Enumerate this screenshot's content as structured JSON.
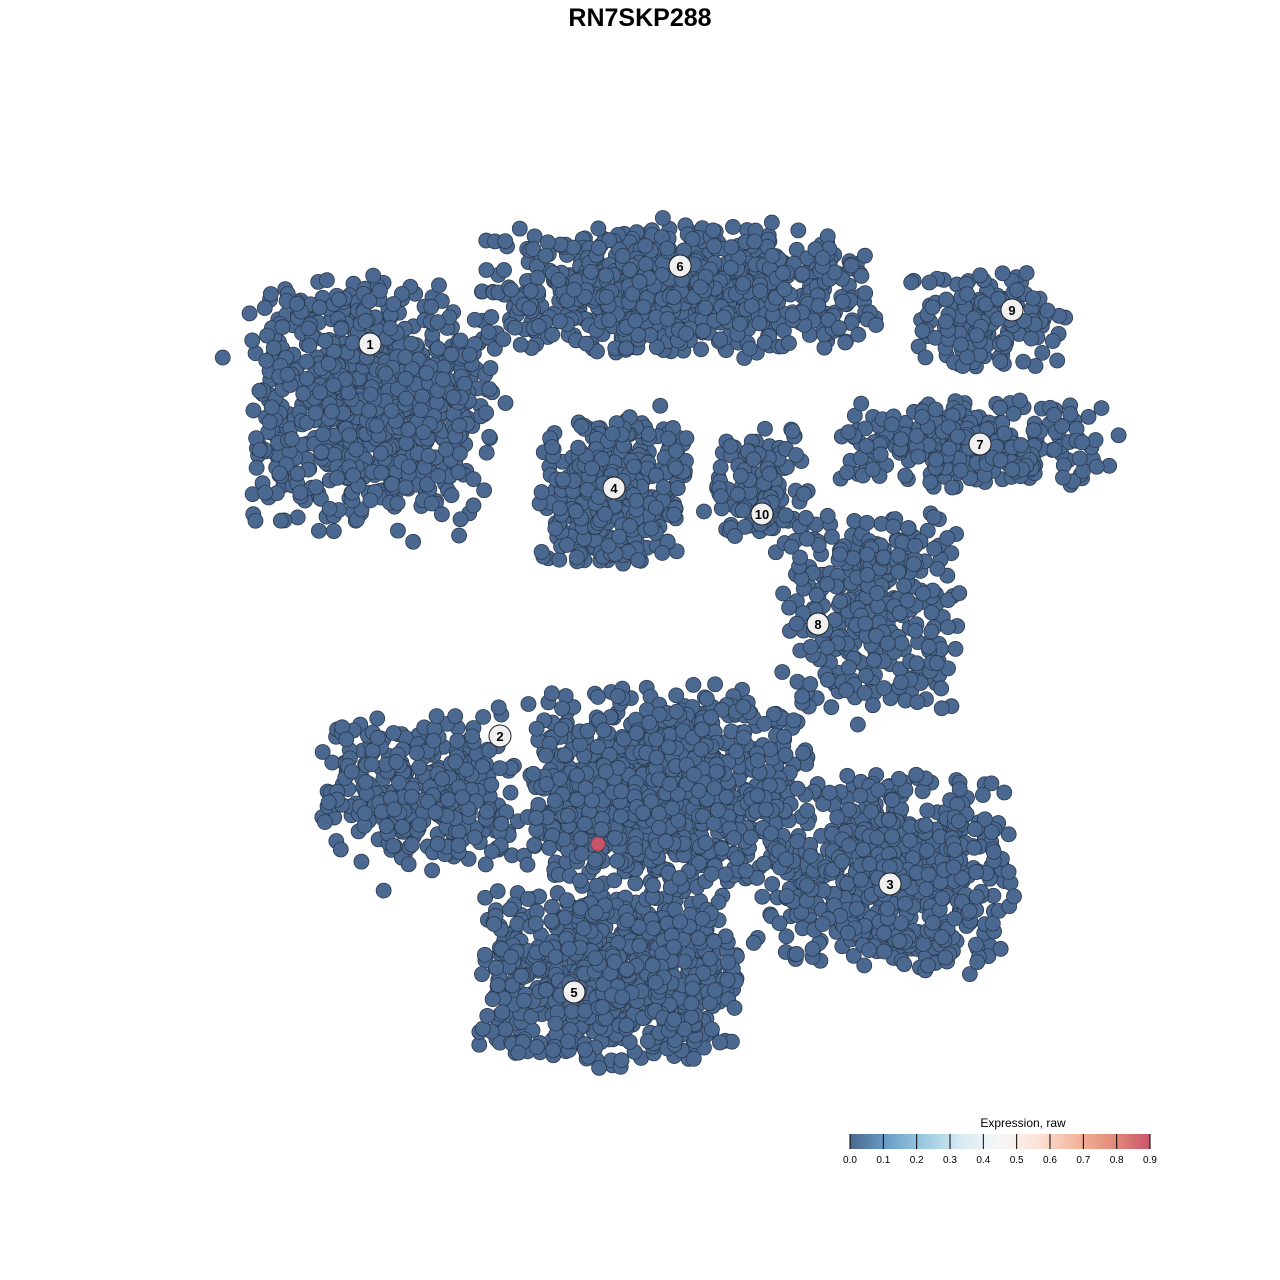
{
  "chart_data": {
    "type": "scatter",
    "title": "RN7SKP288",
    "xlabel": "",
    "ylabel": "",
    "grid": false,
    "point_color_default": "#4a6890",
    "clusters": [
      {
        "label": "1",
        "center": [
          -13.5,
          12
        ],
        "spread": [
          5.5,
          5.5
        ],
        "n": 900
      },
      {
        "label": "6",
        "center": [
          2,
          17.5
        ],
        "spread": [
          9,
          2.8
        ],
        "n": 800
      },
      {
        "label": "4",
        "center": [
          -1.3,
          7.5
        ],
        "spread": [
          3.3,
          3.3
        ],
        "n": 450
      },
      {
        "label": "9",
        "center": [
          17.5,
          16
        ],
        "spread": [
          3.8,
          2.2
        ],
        "n": 160
      },
      {
        "label": "7",
        "center": [
          16.5,
          9.8
        ],
        "spread": [
          6,
          2
        ],
        "n": 300
      },
      {
        "label": "10",
        "center": [
          6,
          7.8
        ],
        "spread": [
          2.2,
          2.6
        ],
        "n": 120
      },
      {
        "label": "8",
        "center": [
          11.5,
          1.5
        ],
        "spread": [
          4,
          4.5
        ],
        "n": 350
      },
      {
        "label": "2",
        "center": [
          -11,
          -7.5
        ],
        "spread": [
          4.5,
          3.5
        ],
        "n": 350
      },
      {
        "label": "5",
        "center": [
          -1.5,
          -17
        ],
        "spread": [
          6,
          4
        ],
        "n": 900
      },
      {
        "label": "3",
        "center": [
          12.5,
          -11.5
        ],
        "spread": [
          5.5,
          4.5
        ],
        "n": 650
      },
      {
        "label": "",
        "center": [
          1.5,
          -7.5
        ],
        "spread": [
          6.5,
          4.5
        ],
        "n": 1000
      }
    ],
    "label_positions": [
      {
        "label": "1",
        "x": -13.5,
        "y": 14.8
      },
      {
        "label": "6",
        "x": 2,
        "y": 18.7
      },
      {
        "label": "4",
        "x": -1.3,
        "y": 7.6
      },
      {
        "label": "9",
        "x": 18.6,
        "y": 16.5
      },
      {
        "label": "7",
        "x": 17,
        "y": 9.8
      },
      {
        "label": "10",
        "x": 6.1,
        "y": 6.3
      },
      {
        "label": "8",
        "x": 8.9,
        "y": 0.8
      },
      {
        "label": "2",
        "x": -7,
        "y": -4.8
      },
      {
        "label": "5",
        "x": -3.3,
        "y": -17.6
      },
      {
        "label": "3",
        "x": 12.5,
        "y": -12.2
      }
    ],
    "highlighted_points": [
      {
        "x": -2.1,
        "y": -10.2,
        "value": 0.85
      }
    ],
    "legend": {
      "title": "Expression, raw",
      "ticks": [
        "0.0",
        "0.1",
        "0.2",
        "0.3",
        "0.4",
        "0.5",
        "0.6",
        "0.7",
        "0.8",
        "0.9"
      ],
      "range": [
        0,
        0.9
      ],
      "colors": [
        "#4a6890",
        "#6a9fc8",
        "#9dcbe0",
        "#d9ebf3",
        "#f7f7f7",
        "#fbe3d6",
        "#f4b79e",
        "#e48c7c",
        "#c8566a"
      ],
      "placement": "bottom-right"
    }
  }
}
